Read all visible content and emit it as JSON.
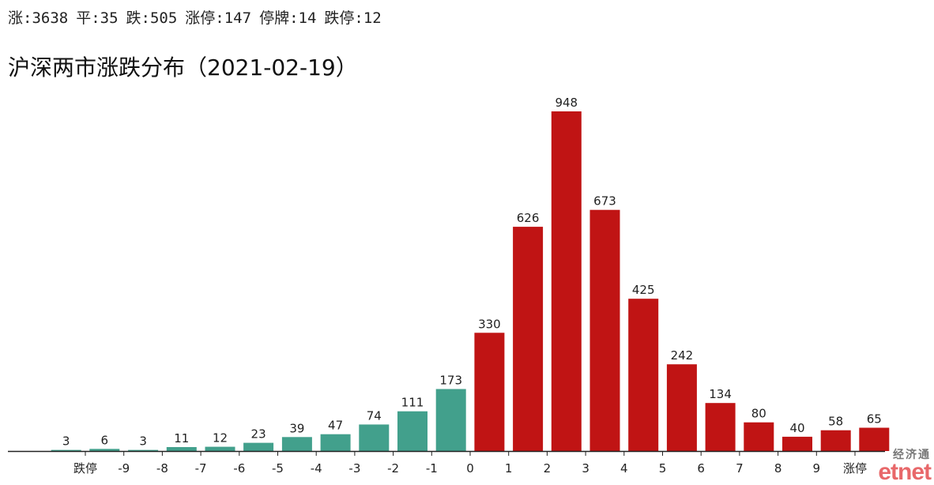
{
  "summary": {
    "up": "涨:3638",
    "flat": "平:35",
    "down": "跌:505",
    "limit_up": "涨停:147",
    "suspended": "停牌:14",
    "limit_down": "跌停:12"
  },
  "title": "沪深两市涨跌分布（2021-02-19）",
  "logo": {
    "cn": "经济通",
    "en": "etnet"
  },
  "colors": {
    "down": "#42a08c",
    "up": "#c01414",
    "axis": "#222222"
  },
  "chart_data": {
    "type": "bar",
    "title": "沪深两市涨跌分布（2021-02-19）",
    "xlabel": "",
    "ylabel": "",
    "ylim": [
      0,
      948
    ],
    "grid": false,
    "legend": "none",
    "categories": [
      "跌停",
      "<-9",
      "-9~-8",
      "-8~-7",
      "-7~-6",
      "-6~-5",
      "-5~-4",
      "-4~-3",
      "-3~-2",
      "-2~-1",
      "-1~0",
      "0~1",
      "1~2",
      "2~3",
      "3~4",
      "4~5",
      "5~6",
      "6~7",
      "7~8",
      "8~9",
      ">9",
      "涨停"
    ],
    "values": [
      3,
      6,
      3,
      11,
      12,
      23,
      39,
      47,
      74,
      111,
      173,
      330,
      626,
      948,
      673,
      425,
      242,
      134,
      80,
      40,
      58,
      65
    ],
    "bar_colors": [
      "down",
      "down",
      "down",
      "down",
      "down",
      "down",
      "down",
      "down",
      "down",
      "down",
      "down",
      "up",
      "up",
      "up",
      "up",
      "up",
      "up",
      "up",
      "up",
      "up",
      "up",
      "up"
    ],
    "tick_labels": [
      "跌停",
      "-9",
      "-8",
      "-7",
      "-6",
      "-5",
      "-4",
      "-3",
      "-2",
      "-1",
      "0",
      "1",
      "2",
      "3",
      "4",
      "5",
      "6",
      "7",
      "8",
      "9",
      "涨停"
    ]
  }
}
